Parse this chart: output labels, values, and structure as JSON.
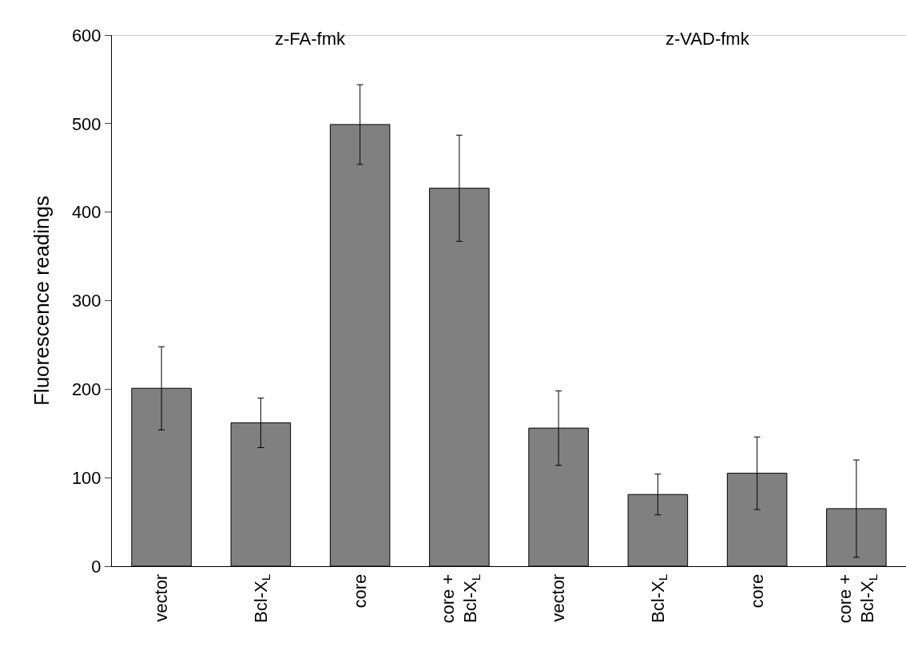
{
  "chart_data": {
    "type": "bar",
    "ylabel": "Fluorescence readings",
    "categories": [
      "vector",
      "Bcl-X$_{L}$",
      "core",
      "core +\nBcl-X$_{L}$",
      "vector",
      "Bcl-X$_{L}$",
      "core",
      "core +\nBcl-X$_{L}$"
    ],
    "values": [
      201,
      162,
      499,
      427,
      156,
      81,
      105,
      65
    ],
    "errors": [
      47,
      28,
      45,
      60,
      42,
      23,
      41,
      55
    ],
    "color": "#808080",
    "ylim": [
      0,
      600
    ],
    "yticks": [
      0,
      100,
      200,
      300,
      400,
      500,
      600
    ],
    "legend": false,
    "annotations": [
      "z-FA-fmk",
      "z-VAD-fmk"
    ]
  }
}
